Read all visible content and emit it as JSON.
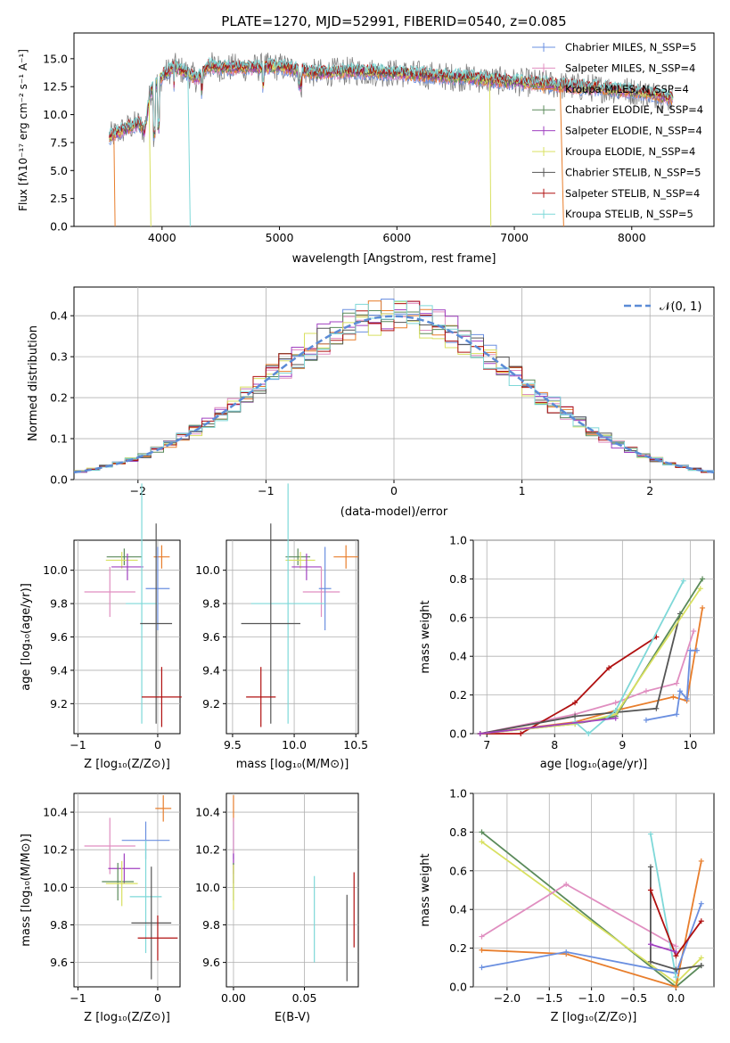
{
  "chart_data": [
    {
      "type": "line",
      "title": "PLATE=1270, MJD=52991, FIBERID=0540, z=0.085",
      "xlabel": "wavelength [Angstrom, rest frame]",
      "ylabel": "Flux [fλ10⁻¹⁷ erg cm⁻² s⁻¹ A⁻¹]",
      "xlim": [
        3250,
        8700
      ],
      "ylim": [
        0,
        17.3
      ],
      "xticks": [
        "4000",
        "5000",
        "6000",
        "7000",
        "8000"
      ],
      "yticks": [
        "0.0",
        "2.5",
        "5.0",
        "7.5",
        "10.0",
        "12.5",
        "15.0"
      ],
      "grid": false,
      "legend_position": "upper-right",
      "series": [
        {
          "name": "Chabrier MILES, N_SSP=5",
          "color": "#6a8fe0"
        },
        {
          "name": "Salpeter MILES, N_SSP=4",
          "color": "#e08ec0"
        },
        {
          "name": "Kroupa MILES, N_SSP=4",
          "color": "#e87e2c"
        },
        {
          "name": "Chabrier ELODIE, N_SSP=4",
          "color": "#5a8a5a"
        },
        {
          "name": "Salpeter ELODIE, N_SSP=4",
          "color": "#a040c0"
        },
        {
          "name": "Kroupa ELODIE, N_SSP=4",
          "color": "#d8e060"
        },
        {
          "name": "Chabrier STELIB, N_SSP=5",
          "color": "#555555"
        },
        {
          "name": "Salpeter STELIB, N_SSP=4",
          "color": "#b01010"
        },
        {
          "name": "Kroupa STELIB, N_SSP=5",
          "color": "#7ed8d8"
        }
      ],
      "data_color": "#808080",
      "continuum": {
        "x": [
          3550,
          3700,
          3800,
          3850,
          3900,
          4000,
          4100,
          4200,
          4300,
          4400,
          4500,
          4800,
          5000,
          5300,
          5600,
          6000,
          6300,
          6600,
          6900,
          7200,
          7500,
          7800,
          8000,
          8200,
          8350
        ],
        "y": [
          8.0,
          8.8,
          9.2,
          8.5,
          12.0,
          13.4,
          14.3,
          13.8,
          13.2,
          14.4,
          14.2,
          14.2,
          14.3,
          13.7,
          13.9,
          13.7,
          13.5,
          13.3,
          13.0,
          12.8,
          12.5,
          12.3,
          12.1,
          11.8,
          11.4
        ]
      }
    },
    {
      "type": "line",
      "xlabel": "(data-model)/error",
      "ylabel": "Normed distribution",
      "xlim": [
        -2.5,
        2.5
      ],
      "ylim": [
        0,
        0.47
      ],
      "xticks": [
        "−2",
        "−1",
        "0",
        "1",
        "2"
      ],
      "yticks": [
        "0.0",
        "0.1",
        "0.2",
        "0.3",
        "0.4"
      ],
      "grid": true,
      "legend_position": "upper-right",
      "legend_label": "𝒩(0, 1)",
      "gaussian": {
        "mean": 0,
        "sigma": 1
      }
    },
    {
      "type": "scatter",
      "xlabel": "Z [log₁₀(Z/Z⊙)]",
      "ylabel": "age  [log₁₀(age/yr)]",
      "xlim": [
        -1.05,
        0.28
      ],
      "ylim": [
        9.02,
        10.18
      ],
      "xticks": [
        "−1",
        "0"
      ],
      "yticks": [
        "9.2",
        "9.4",
        "9.6",
        "9.8",
        "10.0"
      ],
      "points": [
        {
          "color": "#e87e2c",
          "x": 0.05,
          "xerr": 0.1,
          "y": 10.08,
          "yerr": 0.07
        },
        {
          "color": "#5a8a5a",
          "x": -0.42,
          "xerr": 0.22,
          "y": 10.08,
          "yerr": 0.05
        },
        {
          "color": "#d8e060",
          "x": -0.45,
          "xerr": 0.2,
          "y": 10.06,
          "yerr": 0.05
        },
        {
          "color": "#a040c0",
          "x": -0.38,
          "xerr": 0.2,
          "y": 10.02,
          "yerr": 0.08
        },
        {
          "color": "#e08ec0",
          "x": -0.6,
          "xerr": 0.32,
          "y": 9.87,
          "yerr": 0.15
        },
        {
          "color": "#6a8fe0",
          "x": 0.0,
          "xerr": 0.15,
          "y": 9.89,
          "yerr": 0.25
        },
        {
          "color": "#7ed8d8",
          "x": -0.2,
          "xerr": 0.2,
          "y": 9.8,
          "yerr": 0.72
        },
        {
          "color": "#555555",
          "x": -0.02,
          "xerr": 0.2,
          "y": 9.68,
          "yerr": 0.6
        },
        {
          "color": "#b01010",
          "x": 0.05,
          "xerr": 0.25,
          "y": 9.24,
          "yerr": 0.18
        }
      ]
    },
    {
      "type": "scatter",
      "xlabel": "mass [log₁₀(M/M⊙)]",
      "ylabel": "",
      "xlim": [
        9.45,
        10.52
      ],
      "ylim": [
        9.02,
        10.18
      ],
      "xticks": [
        "9.5",
        "10.0",
        "10.5"
      ],
      "yticks": [
        "9.2",
        "9.4",
        "9.6",
        "9.8",
        "10.0"
      ],
      "points": [
        {
          "color": "#e87e2c",
          "x": 10.42,
          "xerr": 0.1,
          "y": 10.08,
          "yerr": 0.07
        },
        {
          "color": "#5a8a5a",
          "x": 10.03,
          "xerr": 0.1,
          "y": 10.08,
          "yerr": 0.05
        },
        {
          "color": "#d8e060",
          "x": 10.05,
          "xerr": 0.12,
          "y": 10.06,
          "yerr": 0.05
        },
        {
          "color": "#a040c0",
          "x": 10.1,
          "xerr": 0.12,
          "y": 10.02,
          "yerr": 0.08
        },
        {
          "color": "#e08ec0",
          "x": 10.22,
          "xerr": 0.15,
          "y": 9.87,
          "yerr": 0.15
        },
        {
          "color": "#6a8fe0",
          "x": 10.25,
          "xerr": 0.05,
          "y": 9.89,
          "yerr": 0.25
        },
        {
          "color": "#7ed8d8",
          "x": 9.95,
          "xerr": 0.3,
          "y": 9.8,
          "yerr": 0.72
        },
        {
          "color": "#555555",
          "x": 9.81,
          "xerr": 0.24,
          "y": 9.68,
          "yerr": 0.6
        },
        {
          "color": "#b01010",
          "x": 9.73,
          "xerr": 0.12,
          "y": 9.24,
          "yerr": 0.18
        }
      ]
    },
    {
      "type": "line",
      "xlabel": "age  [log₁₀(age/yr)]",
      "ylabel": "mass weight",
      "xlim": [
        6.8,
        10.35
      ],
      "ylim": [
        0,
        1.0
      ],
      "xticks": [
        "7",
        "8",
        "9",
        "10"
      ],
      "yticks": [
        "0.0",
        "0.2",
        "0.4",
        "0.6",
        "0.8",
        "1.0"
      ],
      "grid": true,
      "series": [
        {
          "color": "#e08ec0",
          "x": [
            6.9,
            8.3,
            8.9,
            9.35,
            9.8,
            10.05
          ],
          "y": [
            0.0,
            0.1,
            0.16,
            0.22,
            0.26,
            0.53
          ]
        },
        {
          "color": "#e87e2c",
          "x": [
            6.9,
            8.3,
            8.9,
            9.75,
            9.95,
            10.18
          ],
          "y": [
            0.0,
            0.06,
            0.12,
            0.19,
            0.17,
            0.65
          ]
        },
        {
          "color": "#b01010",
          "x": [
            6.9,
            7.5,
            8.3,
            8.8,
            9.5
          ],
          "y": [
            0.0,
            0.0,
            0.16,
            0.34,
            0.5
          ]
        },
        {
          "color": "#555555",
          "x": [
            6.9,
            8.3,
            8.9,
            9.5,
            9.85
          ],
          "y": [
            0.0,
            0.09,
            0.11,
            0.13,
            0.62
          ]
        },
        {
          "color": "#5a8a5a",
          "x": [
            6.9,
            8.3,
            8.9,
            10.18
          ],
          "y": [
            0.0,
            0.05,
            0.09,
            0.8
          ]
        },
        {
          "color": "#d8e060",
          "x": [
            6.9,
            8.3,
            8.9,
            10.15
          ],
          "y": [
            0.0,
            0.05,
            0.1,
            0.75
          ]
        },
        {
          "color": "#7ed8d8",
          "x": [
            8.3,
            8.5,
            8.9,
            9.9
          ],
          "y": [
            0.06,
            0.0,
            0.12,
            0.79
          ]
        },
        {
          "color": "#6a8fe0",
          "x": [
            9.35,
            9.8,
            9.85,
            9.95,
            10.0,
            10.1
          ],
          "y": [
            0.07,
            0.1,
            0.22,
            0.18,
            0.43,
            0.43
          ]
        },
        {
          "color": "#a040c0",
          "x": [
            6.9,
            8.9
          ],
          "y": [
            0.0,
            0.08
          ]
        }
      ]
    },
    {
      "type": "scatter",
      "xlabel": "Z [log₁₀(Z/Z⊙)]",
      "ylabel": "mass [log₁₀(M/M⊙)]",
      "xlim": [
        -1.05,
        0.28
      ],
      "ylim": [
        9.47,
        10.5
      ],
      "xticks": [
        "−1",
        "0"
      ],
      "yticks": [
        "9.6",
        "9.8",
        "10.0",
        "10.2",
        "10.4"
      ],
      "points": [
        {
          "color": "#e87e2c",
          "x": 0.07,
          "xerr": 0.1,
          "y": 10.42,
          "yerr": 0.07
        },
        {
          "color": "#6a8fe0",
          "x": -0.15,
          "xerr": 0.3,
          "y": 10.25,
          "yerr": 0.1
        },
        {
          "color": "#e08ec0",
          "x": -0.6,
          "xerr": 0.32,
          "y": 10.22,
          "yerr": 0.15
        },
        {
          "color": "#a040c0",
          "x": -0.42,
          "xerr": 0.2,
          "y": 10.1,
          "yerr": 0.08
        },
        {
          "color": "#5a8a5a",
          "x": -0.5,
          "xerr": 0.2,
          "y": 10.03,
          "yerr": 0.1
        },
        {
          "color": "#d8e060",
          "x": -0.45,
          "xerr": 0.2,
          "y": 10.02,
          "yerr": 0.12
        },
        {
          "color": "#7ed8d8",
          "x": -0.15,
          "xerr": 0.2,
          "y": 9.95,
          "yerr": 0.3
        },
        {
          "color": "#555555",
          "x": -0.08,
          "xerr": 0.25,
          "y": 9.81,
          "yerr": 0.3
        },
        {
          "color": "#b01010",
          "x": 0.0,
          "xerr": 0.25,
          "y": 9.73,
          "yerr": 0.12
        }
      ]
    },
    {
      "type": "scatter",
      "xlabel": "E(B-V)",
      "ylabel": "",
      "xlim": [
        -0.005,
        0.088
      ],
      "ylim": [
        9.47,
        10.5
      ],
      "xticks": [
        "0.00",
        "0.05"
      ],
      "yticks": [
        "9.6",
        "9.8",
        "10.0",
        "10.2",
        "10.4"
      ],
      "points": [
        {
          "color": "#e87e2c",
          "x": 0.0,
          "xerr": 0,
          "y": 10.42,
          "yerr": 0.07
        },
        {
          "color": "#6a8fe0",
          "x": 0.0,
          "xerr": 0,
          "y": 10.25,
          "yerr": 0.1
        },
        {
          "color": "#e08ec0",
          "x": 0.0,
          "xerr": 0,
          "y": 10.22,
          "yerr": 0.15
        },
        {
          "color": "#a040c0",
          "x": 0.0,
          "xerr": 0,
          "y": 10.1,
          "yerr": 0.08
        },
        {
          "color": "#5a8a5a",
          "x": 0.0,
          "xerr": 0,
          "y": 10.03,
          "yerr": 0.1
        },
        {
          "color": "#d8e060",
          "x": 0.0,
          "xerr": 0,
          "y": 10.0,
          "yerr": 0.12
        },
        {
          "color": "#7ed8d8",
          "x": 0.057,
          "xerr": 0,
          "y": 9.83,
          "yerr": 0.23
        },
        {
          "color": "#555555",
          "x": 0.08,
          "xerr": 0,
          "y": 9.73,
          "yerr": 0.23
        },
        {
          "color": "#b01010",
          "x": 0.085,
          "xerr": 0,
          "y": 9.88,
          "yerr": 0.2
        }
      ]
    },
    {
      "type": "line",
      "xlabel": "Z [log₁₀(Z/Z⊙)]",
      "ylabel": "mass weight",
      "xlim": [
        -2.4,
        0.45
      ],
      "ylim": [
        0,
        1.0
      ],
      "xticks": [
        "−2.0",
        "−1.5",
        "−1.0",
        "−0.5",
        "0.0"
      ],
      "yticks": [
        "0.0",
        "0.2",
        "0.4",
        "0.6",
        "0.8",
        "1.0"
      ],
      "grid": true,
      "series": [
        {
          "color": "#5a8a5a",
          "x": [
            -2.3,
            0.0,
            0.3
          ],
          "y": [
            0.8,
            0.0,
            0.11
          ]
        },
        {
          "color": "#d8e060",
          "x": [
            -2.3,
            0.0,
            0.3
          ],
          "y": [
            0.75,
            0.02,
            0.15
          ]
        },
        {
          "color": "#e08ec0",
          "x": [
            -2.3,
            -1.3,
            0.0
          ],
          "y": [
            0.26,
            0.53,
            0.21
          ]
        },
        {
          "color": "#e87e2c",
          "x": [
            -2.3,
            -1.3,
            0.0,
            0.3
          ],
          "y": [
            0.19,
            0.17,
            0.0,
            0.65
          ]
        },
        {
          "color": "#6a8fe0",
          "x": [
            -2.3,
            -1.3,
            0.0,
            0.3
          ],
          "y": [
            0.1,
            0.18,
            0.07,
            0.43
          ]
        },
        {
          "color": "#7ed8d8",
          "x": [
            -0.3,
            0.0
          ],
          "y": [
            0.79,
            0.05
          ]
        },
        {
          "color": "#555555",
          "x": [
            -0.3,
            -0.3,
            0.0,
            0.3
          ],
          "y": [
            0.62,
            0.13,
            0.09,
            0.11
          ]
        },
        {
          "color": "#b01010",
          "x": [
            -0.3,
            0.0,
            0.3
          ],
          "y": [
            0.5,
            0.16,
            0.34
          ]
        },
        {
          "color": "#a040c0",
          "x": [
            -0.3,
            0.0
          ],
          "y": [
            0.22,
            0.18
          ]
        }
      ]
    }
  ]
}
